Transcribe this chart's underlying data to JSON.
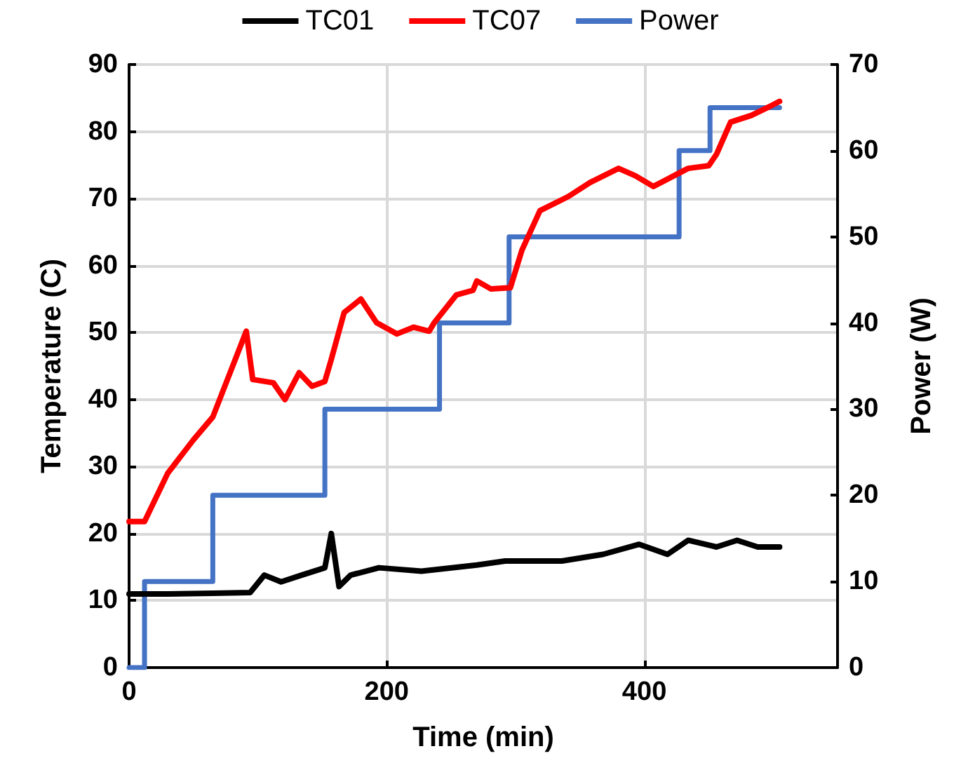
{
  "chart_data": {
    "type": "line",
    "xlabel": "Time (min)",
    "ylabel": "Temperature (C)",
    "y2label": "Power (W)",
    "xlim": [
      0,
      550
    ],
    "xticks": [
      0,
      200,
      400
    ],
    "ylim": [
      0,
      90
    ],
    "yticks": [
      0,
      10,
      20,
      30,
      40,
      50,
      60,
      70,
      80,
      90
    ],
    "y2lim": [
      0,
      70
    ],
    "y2ticks": [
      0,
      10,
      20,
      30,
      40,
      50,
      60,
      70
    ],
    "grid": true,
    "legend": "top",
    "marker": "none",
    "line_style": "solid",
    "series": [
      {
        "name": "TC01",
        "color": "#000000",
        "x": [
          0,
          30,
          65,
          94,
          105,
          118,
          134,
          152,
          157,
          163,
          172,
          194,
          227,
          270,
          292,
          336,
          368,
          396,
          418,
          434,
          456,
          472,
          488,
          505
        ],
        "values": [
          11,
          11,
          11.1,
          11.2,
          13.8,
          12.8,
          13.8,
          14.9,
          20,
          12.1,
          13.8,
          14.9,
          14.4,
          15.3,
          15.9,
          15.9,
          16.9,
          18.4,
          16.9,
          19,
          18,
          19,
          18,
          18
        ]
      },
      {
        "name": "TC07",
        "color": "#ff0000",
        "x": [
          0,
          12,
          30,
          50,
          65,
          91,
          96,
          112,
          121,
          132,
          142,
          152,
          157,
          167,
          180,
          192,
          208,
          221,
          233,
          237,
          254,
          267,
          270,
          281,
          296,
          305,
          319,
          341,
          358,
          380,
          393,
          407,
          423,
          434,
          450,
          456,
          467,
          483,
          499,
          505
        ],
        "values": [
          21.8,
          21.8,
          29,
          34,
          37.4,
          50.2,
          43,
          42.5,
          40,
          44,
          42,
          42.7,
          46,
          53,
          55,
          51.5,
          49.8,
          50.8,
          50.2,
          51.5,
          55.6,
          56.3,
          57.7,
          56.5,
          56.7,
          62.3,
          68.2,
          70.3,
          72.4,
          74.5,
          73.4,
          71.8,
          73.4,
          74.5,
          74.9,
          76.6,
          81.4,
          82.4,
          83.9,
          84.5
        ]
      },
      {
        "name": "Power",
        "color": "#4472c4",
        "type": "step",
        "axis": "y2",
        "x": [
          0,
          12,
          65,
          152,
          241,
          295,
          427,
          451,
          505
        ],
        "values": [
          0,
          10,
          20,
          30,
          40,
          50,
          60,
          65,
          65
        ]
      }
    ]
  }
}
